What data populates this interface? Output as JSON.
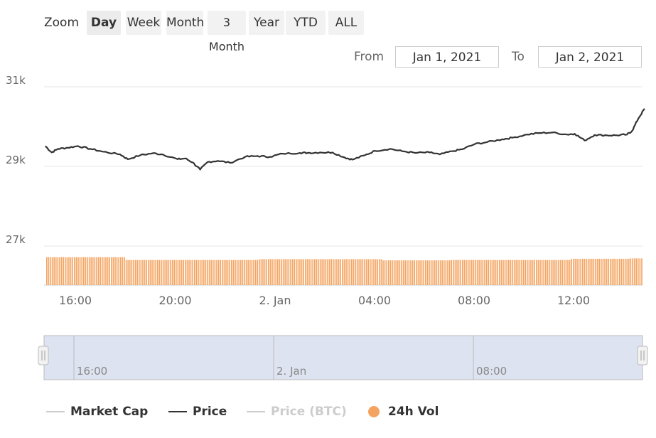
{
  "zoom": {
    "label": "Zoom",
    "buttons": [
      "Day",
      "Week",
      "Month",
      "3 Month",
      "Year",
      "YTD",
      "ALL"
    ],
    "active": "Day"
  },
  "range": {
    "from_label": "From",
    "from_value": "Jan 1, 2021",
    "to_label": "To",
    "to_value": "Jan 2, 2021"
  },
  "legend": {
    "items": [
      {
        "label": "Market Cap",
        "visible": false
      },
      {
        "label": "Price",
        "visible": true
      },
      {
        "label": "Price (BTC)",
        "visible": false
      },
      {
        "label": "24h Vol",
        "visible": true
      }
    ]
  },
  "colors": {
    "price_line": "#333333",
    "volume_bar": "#f4a460",
    "grid": "#e6e6e6",
    "navigator_fill": "#dde3f0"
  },
  "chart_data": {
    "type": "line",
    "title": "",
    "y_ticks": [
      "31k",
      "29k",
      "27k"
    ],
    "ylim": [
      26000,
      31000
    ],
    "x_ticks": [
      "16:00",
      "20:00",
      "2. Jan",
      "04:00",
      "08:00",
      "12:00"
    ],
    "navigator_ticks": [
      "16:00",
      "2. Jan",
      "08:00"
    ],
    "grid": true,
    "x_hours": [
      0,
      0.25,
      0.5,
      0.9,
      1.3,
      1.8,
      2.3,
      3.0,
      3.3,
      3.8,
      4.3,
      4.7,
      5.3,
      5.6,
      5.9,
      6.2,
      6.5,
      6.9,
      7.4,
      8.0,
      8.5,
      9.0,
      9.5,
      10.2,
      10.5,
      11.0,
      11.5,
      12.0,
      12.3,
      12.8,
      13.2,
      13.8,
      14.3,
      14.8,
      15.4,
      15.8,
      16.3,
      16.7,
      17.2,
      17.7,
      18.3,
      18.7,
      19.3,
      19.8,
      20.3,
      20.9,
      21.2,
      21.6,
      22.0,
      22.5,
      22.9,
      23.3,
      23.5,
      23.75,
      24.0
    ],
    "price": [
      29510,
      29350,
      29440,
      29470,
      29510,
      29440,
      29370,
      29300,
      29180,
      29280,
      29330,
      29300,
      29180,
      29200,
      29100,
      28920,
      29110,
      29140,
      29090,
      29240,
      29260,
      29240,
      29320,
      29340,
      29340,
      29350,
      29350,
      29220,
      29170,
      29280,
      29390,
      29440,
      29380,
      29340,
      29350,
      29300,
      29380,
      29430,
      29560,
      29610,
      29680,
      29720,
      29800,
      29840,
      29850,
      29800,
      29820,
      29650,
      29790,
      29780,
      29780,
      29800,
      29890,
      30200,
      30450
    ],
    "volume": {
      "segments_hours": [
        [
          0,
          3.2
        ],
        [
          3.2,
          8.5
        ],
        [
          8.5,
          13.5
        ],
        [
          13.5,
          16.2
        ],
        [
          16.2,
          21.0
        ],
        [
          21.0,
          23.4
        ],
        [
          23.4,
          24.0
        ]
      ],
      "segment_values": [
        26720,
        26650,
        26670,
        26640,
        26650,
        26680,
        26690
      ]
    }
  }
}
